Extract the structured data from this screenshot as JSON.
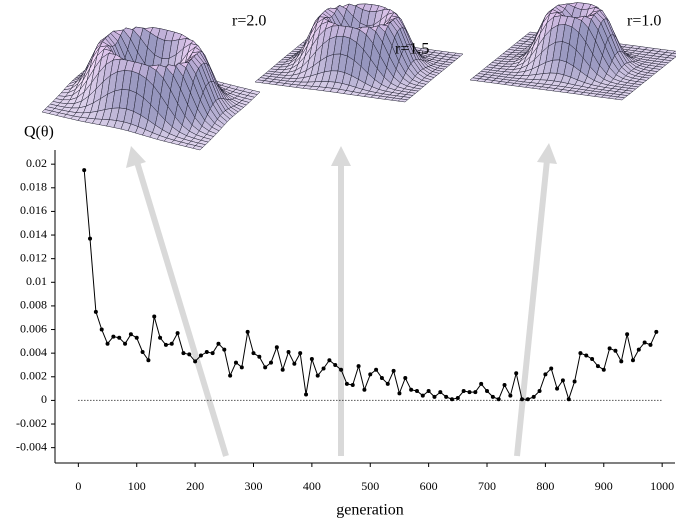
{
  "chart_data": {
    "type": "line",
    "y_label": "Q(θ)",
    "x_label": "generation",
    "annotations": [
      "r=2.0",
      "r=1.5",
      "r=1.0"
    ],
    "x": [
      10,
      20,
      30,
      40,
      50,
      60,
      70,
      80,
      90,
      100,
      110,
      120,
      130,
      140,
      150,
      160,
      170,
      180,
      190,
      200,
      210,
      220,
      230,
      240,
      250,
      260,
      270,
      280,
      290,
      300,
      310,
      320,
      330,
      340,
      350,
      360,
      370,
      380,
      390,
      400,
      410,
      420,
      430,
      440,
      450,
      460,
      470,
      480,
      490,
      500,
      510,
      520,
      530,
      540,
      550,
      560,
      570,
      580,
      590,
      600,
      610,
      620,
      630,
      640,
      650,
      660,
      670,
      680,
      690,
      700,
      710,
      720,
      730,
      740,
      750,
      760,
      770,
      780,
      790,
      800,
      810,
      820,
      830,
      840,
      850,
      860,
      870,
      880,
      890,
      900,
      910,
      920,
      930,
      940,
      950,
      960,
      970,
      980,
      990
    ],
    "values": [
      0.0195,
      0.0137,
      0.0075,
      0.006,
      0.0048,
      0.0054,
      0.0053,
      0.0048,
      0.0056,
      0.0053,
      0.0041,
      0.0034,
      0.0071,
      0.0053,
      0.0047,
      0.0048,
      0.0057,
      0.004,
      0.0039,
      0.0033,
      0.0038,
      0.0041,
      0.004,
      0.0048,
      0.0043,
      0.0021,
      0.0032,
      0.0028,
      0.0058,
      0.004,
      0.0037,
      0.0028,
      0.0032,
      0.0045,
      0.0026,
      0.0041,
      0.0031,
      0.004,
      0.0005,
      0.0035,
      0.0021,
      0.0027,
      0.0034,
      0.003,
      0.0026,
      0.0014,
      0.0013,
      0.0029,
      0.0009,
      0.0022,
      0.0026,
      0.0019,
      0.0014,
      0.0025,
      0.0006,
      0.0019,
      0.0009,
      0.0008,
      0.0004,
      0.0008,
      0.0003,
      0.0007,
      0.0003,
      0.0001,
      0.0002,
      0.0008,
      0.0007,
      0.0007,
      0.0014,
      0.0008,
      0.0003,
      0.0001,
      0.0013,
      0.0004,
      0.0023,
      0.0001,
      0.0001,
      0.0003,
      0.0008,
      0.0022,
      0.0027,
      0.001,
      0.0017,
      0.0001,
      0.0016,
      0.004,
      0.0038,
      0.0035,
      0.0029,
      0.0026,
      0.0044,
      0.0042,
      0.0033,
      0.0056,
      0.0034,
      0.0043,
      0.0049,
      0.0047,
      0.0058
    ],
    "color": "#000000",
    "xlim": [
      -40,
      1022
    ],
    "xticks": [
      0,
      100,
      200,
      300,
      400,
      500,
      600,
      700,
      800,
      900,
      1000
    ],
    "ylim": [
      -0.0053,
      0.0212
    ],
    "yticks": [
      -0.004,
      -0.002,
      0,
      0.002,
      0.004,
      0.006,
      0.008,
      0.01,
      0.012,
      0.014,
      0.016,
      0.018,
      0.02
    ],
    "zero_line": true
  }
}
